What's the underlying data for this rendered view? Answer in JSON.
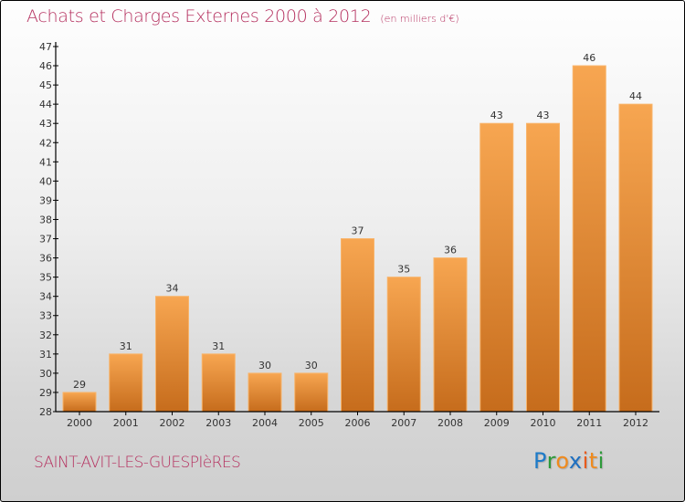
{
  "header": {
    "title": "Achats et Charges Externes 2000 à 2012",
    "unit": "(en milliers d'€)"
  },
  "footer": {
    "commune": "SAINT-AVIT-LES-GUESPIèRES",
    "logo": {
      "letters": [
        "P",
        "r",
        "o",
        "x",
        "i",
        "t",
        "i"
      ],
      "colors": [
        "#1e7bc8",
        "#2e9a3a",
        "#f08a1c",
        "#1e6fc0",
        "#e85a1c",
        "#f08a1c",
        "#2e9a3a"
      ]
    }
  },
  "colors": {
    "title": "#b5305f",
    "bar_top": "#f7a651",
    "bar_bottom": "#c66c1c",
    "bar_edge": "#f8b46a",
    "axis": "#000000"
  },
  "chart_data": {
    "type": "bar",
    "title": "Achats et Charges Externes 2000 à 2012",
    "subtitle": "(en milliers d'€)",
    "xlabel": "",
    "ylabel": "",
    "categories": [
      "2000",
      "2001",
      "2002",
      "2003",
      "2004",
      "2005",
      "2006",
      "2007",
      "2008",
      "2009",
      "2010",
      "2011",
      "2012"
    ],
    "values": [
      29,
      31,
      34,
      31,
      30,
      30,
      37,
      35,
      36,
      43,
      43,
      46,
      44
    ],
    "ylim": [
      28,
      47
    ],
    "yticks": [
      28,
      29,
      30,
      31,
      32,
      33,
      34,
      35,
      36,
      37,
      38,
      39,
      40,
      41,
      42,
      43,
      44,
      45,
      46,
      47
    ],
    "grid": false,
    "legend": "none",
    "data_labels": true
  }
}
